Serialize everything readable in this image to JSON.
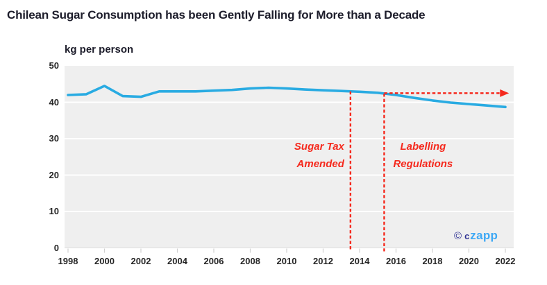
{
  "title": "Chilean Sugar Consumption has been Gently Falling for More than a Decade",
  "chart_data": {
    "type": "line",
    "title": "Chilean Sugar Consumption has been Gently Falling for More than a Decade",
    "xlabel": "",
    "ylabel": "kg per person",
    "unit_label": "kg per person",
    "x": [
      1998,
      1999,
      2000,
      2001,
      2002,
      2003,
      2004,
      2005,
      2006,
      2007,
      2008,
      2009,
      2010,
      2011,
      2012,
      2013,
      2014,
      2015,
      2016,
      2017,
      2018,
      2019,
      2020,
      2021,
      2022
    ],
    "series": [
      {
        "name": "Chilean sugar consumption (kg per person)",
        "color": "#29abe2",
        "values": [
          42.0,
          42.2,
          44.5,
          41.7,
          41.5,
          43.0,
          43.0,
          43.0,
          43.2,
          43.4,
          43.8,
          44.0,
          43.8,
          43.5,
          43.3,
          43.1,
          42.9,
          42.6,
          42.0,
          41.2,
          40.5,
          39.9,
          39.5,
          39.1,
          38.7
        ]
      }
    ],
    "ylim": [
      0,
      50
    ],
    "y_ticks": [
      0,
      10,
      20,
      30,
      40,
      50
    ],
    "x_ticks": [
      1998,
      2000,
      2002,
      2004,
      2006,
      2008,
      2010,
      2012,
      2014,
      2016,
      2018,
      2020,
      2022
    ],
    "grid": "horizontal white gridlines on light-gray plot background",
    "legend": "none",
    "annotations": {
      "events": [
        {
          "label_lines": [
            "Sugar Tax",
            "Amended"
          ],
          "year": 2013.5,
          "side": "left"
        },
        {
          "label_lines": [
            "Labelling",
            "Regulations"
          ],
          "year": 2015.35,
          "side": "right"
        }
      ],
      "trend_arrow": {
        "from_year": 2015.35,
        "to_year": 2022.2,
        "value": 42.5,
        "style": "red dashed horizontal arrow"
      }
    }
  },
  "watermark": {
    "copyright": "©",
    "brand_dark": "c",
    "brand_light": "zapp"
  },
  "colors": {
    "line_blue": "#29abe2",
    "event_red": "#f5291d",
    "plot_bg": "#efefef",
    "gridline": "#ffffff",
    "axis_tick": "#d0d0d0",
    "title_text": "#1d1d2b",
    "axis_text": "#262626",
    "logo_dark_blue": "#2e3192",
    "logo_light_blue": "#3fa9f5"
  }
}
